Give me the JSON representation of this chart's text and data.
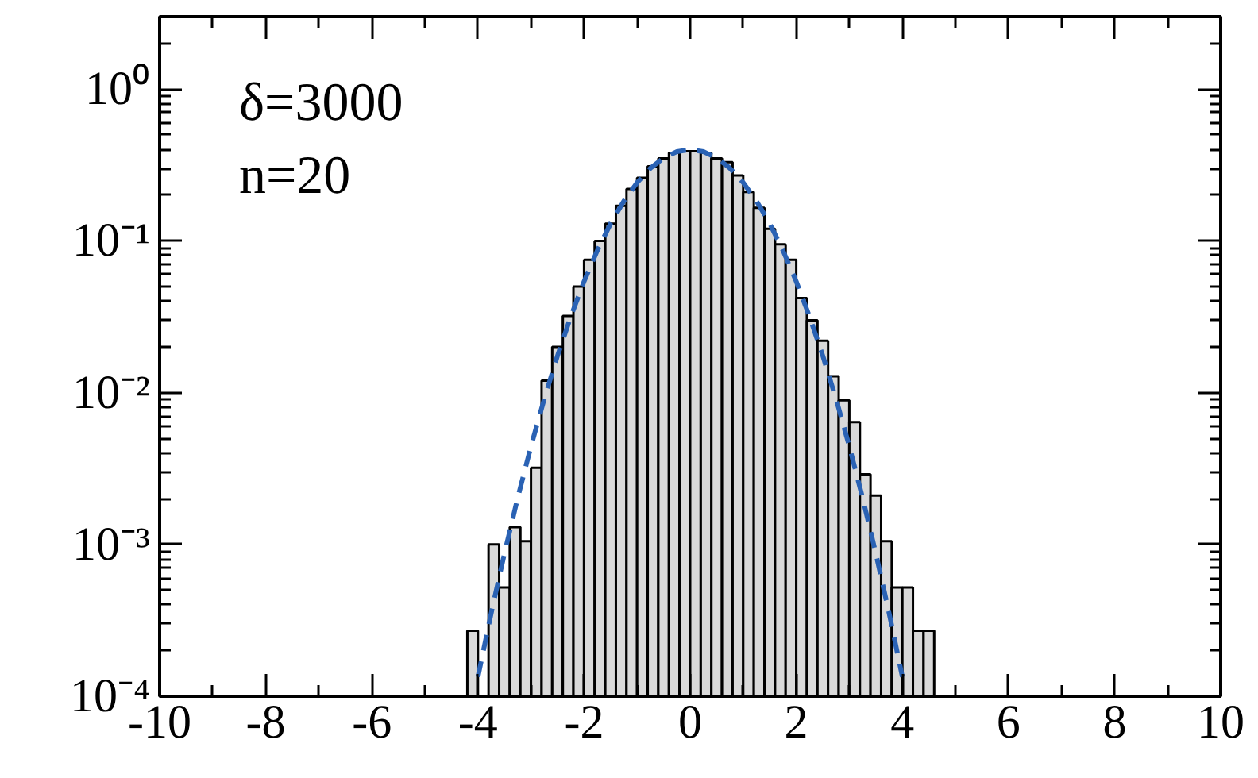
{
  "chart_data": {
    "type": "histogram",
    "bins": [
      -4.2,
      -4.0,
      -3.8,
      -3.6,
      -3.4,
      -3.2,
      -3.0,
      -2.8,
      -2.6,
      -2.4,
      -2.2,
      -2.0,
      -1.8,
      -1.6,
      -1.4,
      -1.2,
      -1.0,
      -0.8,
      -0.6,
      -0.4,
      -0.2,
      0.0,
      0.2,
      0.4,
      0.6,
      0.8,
      1.0,
      1.2,
      1.4,
      1.6,
      1.8,
      2.0,
      2.2,
      2.4,
      2.6,
      2.8,
      3.0,
      3.2,
      3.4,
      3.6,
      3.8,
      4.0,
      4.2,
      4.4,
      4.6
    ],
    "values": [
      0.00027,
      null,
      0.001,
      0.00052,
      0.0013,
      0.00105,
      0.0032,
      0.012,
      0.02,
      0.032,
      0.05,
      0.075,
      0.1,
      0.13,
      0.17,
      0.22,
      0.26,
      0.31,
      0.35,
      0.38,
      0.39,
      0.39,
      0.38,
      0.35,
      0.33,
      0.27,
      0.21,
      0.165,
      0.12,
      0.095,
      0.075,
      0.042,
      0.03,
      0.022,
      0.0128,
      0.0089,
      0.0064,
      0.0029,
      0.0021,
      0.00105,
      0.00052,
      0.00052,
      0.00027,
      0.00027
    ],
    "color": "#d9d9d9",
    "series": [
      {
        "type": "line",
        "color": "#2a62b4",
        "line_style": "dashed",
        "x": [
          -4.0,
          -3.75,
          -3.5,
          -3.25,
          -3.0,
          -2.75,
          -2.5,
          -2.25,
          -2.0,
          -1.75,
          -1.5,
          -1.25,
          -1.0,
          -0.75,
          -0.5,
          -0.25,
          0.0,
          0.25,
          0.5,
          0.75,
          1.0,
          1.25,
          1.5,
          1.75,
          2.0,
          2.25,
          2.5,
          2.75,
          3.0,
          3.25,
          3.5,
          3.75,
          4.0
        ],
        "values": [
          0.000134,
          0.000353,
          0.000873,
          0.00203,
          0.00443,
          0.00909,
          0.0175,
          0.0317,
          0.054,
          0.0863,
          0.13,
          0.183,
          0.242,
          0.301,
          0.352,
          0.387,
          0.399,
          0.387,
          0.352,
          0.301,
          0.242,
          0.183,
          0.13,
          0.0863,
          0.054,
          0.0317,
          0.0175,
          0.00909,
          0.00443,
          0.00203,
          0.000873,
          0.000353,
          0.000134
        ]
      }
    ],
    "log": "y",
    "xlim": [
      -10,
      10
    ],
    "ylim": [
      0.0001,
      3
    ],
    "xticks": [
      -10,
      -8,
      -6,
      -4,
      -2,
      0,
      2,
      4,
      6,
      8,
      10
    ],
    "yticks": [
      {
        "value": 0.0001,
        "label": "10⁻⁴"
      },
      {
        "value": 0.001,
        "label": "10⁻³"
      },
      {
        "value": 0.01,
        "label": "10⁻²"
      },
      {
        "value": 0.1,
        "label": "10⁻¹"
      },
      {
        "value": 1,
        "label": "10⁰"
      }
    ],
    "grid": false,
    "annotations": [
      "δ=3000",
      "n=20"
    ]
  }
}
